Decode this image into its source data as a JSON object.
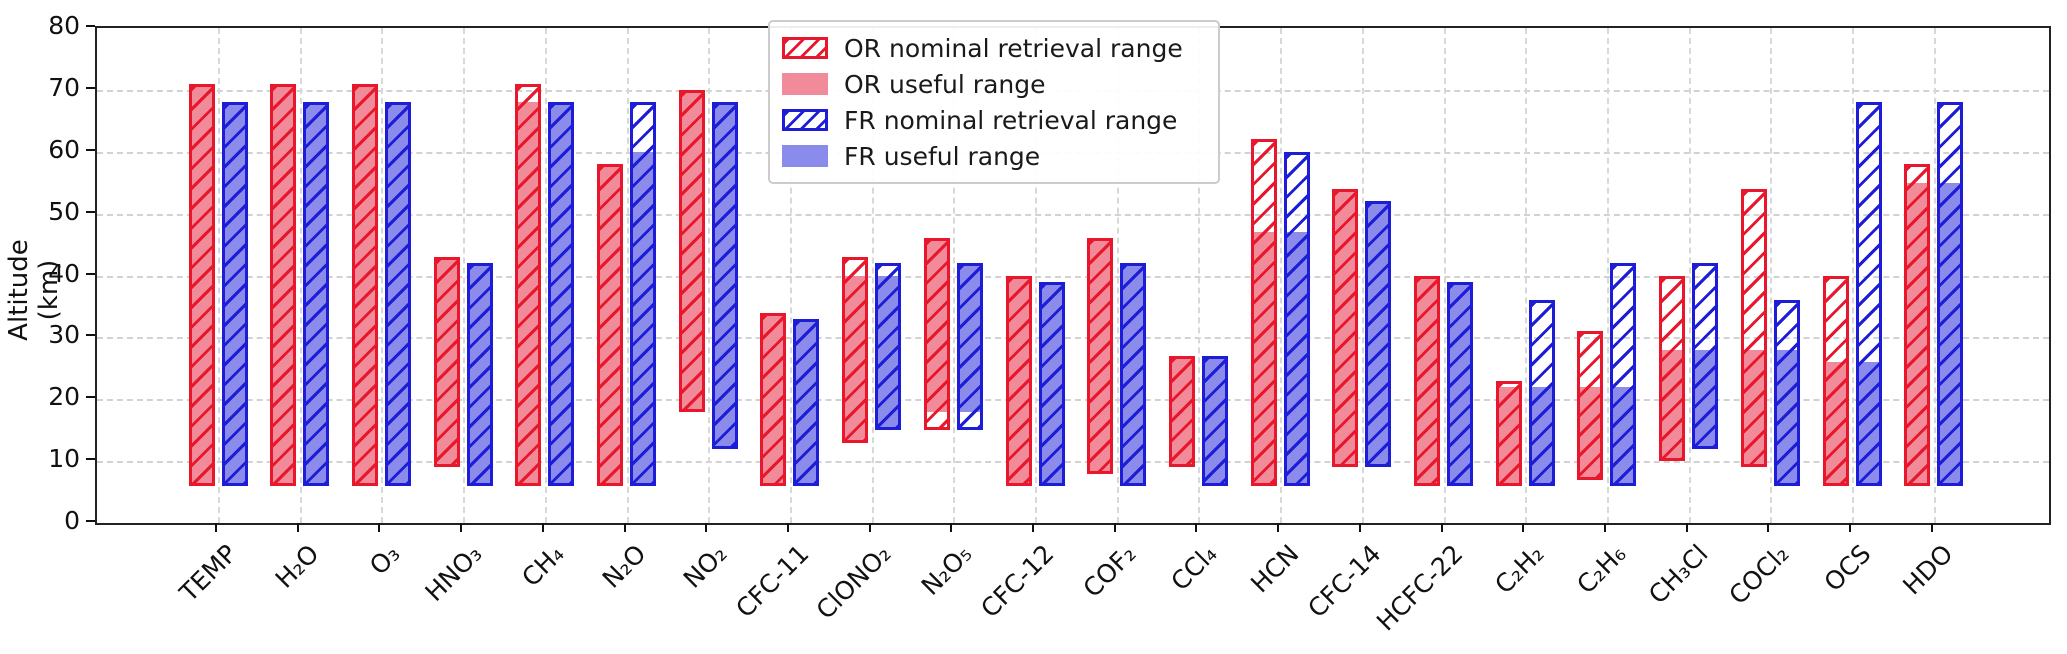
{
  "chart_data": {
    "type": "bar",
    "title": "",
    "ylabel": "Altitude (km)",
    "ylim": [
      0,
      80
    ],
    "yticks": [
      0,
      10,
      20,
      30,
      40,
      50,
      60,
      70,
      80
    ],
    "grid": "dashed, both axes",
    "legend_position": "upper center-left, inside plot",
    "categories": [
      "TEMP",
      "H₂O",
      "O₃",
      "HNO₃",
      "CH₄",
      "N₂O",
      "NO₂",
      "CFC-11",
      "ClONO₂",
      "N₂O₅",
      "CFC-12",
      "COF₂",
      "CCl₄",
      "HCN",
      "CFC-14",
      "HCFC-22",
      "C₂H₂",
      "C₂H₆",
      "CH₃Cl",
      "COCl₂",
      "OCS",
      "HDO"
    ],
    "series": [
      {
        "name": "OR nominal retrieval range",
        "style": "hatched-outline",
        "color": "#e9172c",
        "ranges_km": [
          [
            6,
            71
          ],
          [
            6,
            71
          ],
          [
            6,
            71
          ],
          [
            9,
            43
          ],
          [
            6,
            71
          ],
          [
            6,
            58
          ],
          [
            18,
            70
          ],
          [
            6,
            34
          ],
          [
            13,
            43
          ],
          [
            15,
            46
          ],
          [
            6,
            40
          ],
          [
            8,
            46
          ],
          [
            9,
            27
          ],
          [
            6,
            62
          ],
          [
            9,
            54
          ],
          [
            6,
            40
          ],
          [
            6,
            23
          ],
          [
            7,
            31
          ],
          [
            10,
            40
          ],
          [
            9,
            54
          ],
          [
            6,
            40
          ],
          [
            6,
            58
          ]
        ]
      },
      {
        "name": "OR useful range",
        "style": "solid",
        "color": "#f28b99",
        "ranges_km": [
          [
            6,
            71
          ],
          [
            6,
            71
          ],
          [
            6,
            71
          ],
          [
            9,
            43
          ],
          [
            6,
            68
          ],
          [
            6,
            58
          ],
          [
            18,
            70
          ],
          [
            6,
            34
          ],
          [
            13,
            40
          ],
          [
            18,
            46
          ],
          [
            6,
            40
          ],
          [
            8,
            46
          ],
          [
            9,
            27
          ],
          [
            6,
            47
          ],
          [
            9,
            54
          ],
          [
            6,
            40
          ],
          [
            6,
            22
          ],
          [
            7,
            22
          ],
          [
            10,
            28
          ],
          [
            9,
            28
          ],
          [
            6,
            26
          ],
          [
            6,
            55
          ]
        ]
      },
      {
        "name": "FR nominal retrieval range",
        "style": "hatched-outline",
        "color": "#1d1dd8",
        "ranges_km": [
          [
            6,
            68
          ],
          [
            6,
            68
          ],
          [
            6,
            68
          ],
          [
            6,
            42
          ],
          [
            6,
            68
          ],
          [
            6,
            68
          ],
          [
            12,
            68
          ],
          [
            6,
            33
          ],
          [
            15,
            42
          ],
          [
            15,
            42
          ],
          [
            6,
            39
          ],
          [
            6,
            42
          ],
          [
            6,
            27
          ],
          [
            6,
            60
          ],
          [
            9,
            52
          ],
          [
            6,
            39
          ],
          [
            6,
            36
          ],
          [
            6,
            42
          ],
          [
            12,
            42
          ],
          [
            6,
            36
          ],
          [
            6,
            68
          ],
          [
            6,
            68
          ]
        ]
      },
      {
        "name": "FR useful range",
        "style": "solid",
        "color": "#8a8bea",
        "ranges_km": [
          [
            6,
            68
          ],
          [
            6,
            68
          ],
          [
            6,
            68
          ],
          [
            6,
            42
          ],
          [
            6,
            68
          ],
          [
            6,
            60
          ],
          [
            12,
            68
          ],
          [
            6,
            33
          ],
          [
            15,
            40
          ],
          [
            18,
            42
          ],
          [
            6,
            39
          ],
          [
            6,
            42
          ],
          [
            6,
            27
          ],
          [
            6,
            47
          ],
          [
            9,
            52
          ],
          [
            6,
            39
          ],
          [
            6,
            22
          ],
          [
            6,
            22
          ],
          [
            12,
            28
          ],
          [
            6,
            28
          ],
          [
            6,
            26
          ],
          [
            6,
            55
          ]
        ]
      }
    ],
    "colors": {
      "or_edge": "#e9172c",
      "or_fill": "#f28b99",
      "fr_edge": "#1d1dd8",
      "fr_fill": "#8a8bea",
      "grid": "#d2d2d2",
      "axis": "#222222"
    }
  }
}
